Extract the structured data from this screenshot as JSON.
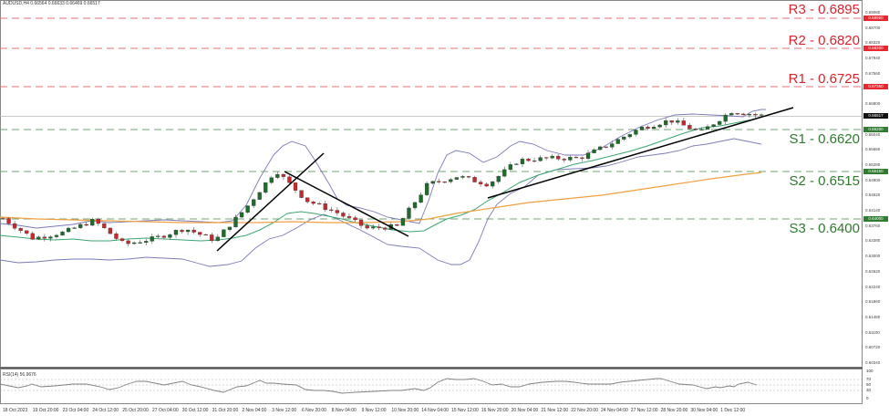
{
  "header": {
    "title": "AUDUSD,H4  0.66564 0.66633 0.66469 0.66517",
    "symbol": "AUDUSD",
    "timeframe": "H4",
    "ohlc": {
      "open": "0.66564",
      "high": "0.66633",
      "low": "0.66469",
      "close": "0.66517"
    }
  },
  "levels": {
    "r3": {
      "label": "R3 - 0.6895",
      "tag": "0.68950",
      "color": "#d9232d"
    },
    "r2": {
      "label": "R2 - 0.6820",
      "tag": "0.68200",
      "color": "#d9232d"
    },
    "r1": {
      "label": "R1 - 0.6725",
      "tag": "0.67250",
      "color": "#d9232d"
    },
    "current": {
      "tag": "0.66517",
      "color": "#111111"
    },
    "s1": {
      "label": "S1 - 0.6620",
      "tag": "0.66200",
      "color": "#2d7a2d"
    },
    "s2": {
      "label": "S2 - 0.6515",
      "tag": "0.65150",
      "color": "#2d7a2d"
    },
    "s3": {
      "label": "S3 - 0.6400",
      "tag": "0.64000",
      "color": "#2d7a2d"
    }
  },
  "price_axis": [
    "0.69080",
    "0.68700",
    "0.68320",
    "0.67940",
    "0.67560",
    "0.66800",
    "0.66040",
    "0.65660",
    "0.65280",
    "0.64900",
    "0.64520",
    "0.64140",
    "0.63760",
    "0.63380",
    "0.63000",
    "0.62620",
    "0.62240",
    "0.61860",
    "0.61480",
    "0.61100",
    "0.60720",
    "0.60340"
  ],
  "time_axis": [
    "18 Oct 2023",
    "19 Oct 20:00",
    "23 Oct 04:00",
    "24 Oct 12:00",
    "25 Oct 20:00",
    "27 Oct 04:00",
    "30 Oct 12:00",
    "31 Oct 20:00",
    "2 Nov 04:00",
    "3 Nov 12:00",
    "6 Nov 20:00",
    "8 Nov 04:00",
    "9 Nov 12:00",
    "10 Nov 20:00",
    "14 Nov 04:00",
    "15 Nov 12:00",
    "16 Nov 20:00",
    "20 Nov 04:00",
    "21 Nov 12:00",
    "22 Nov 20:00",
    "24 Nov 04:00",
    "27 Nov 12:00",
    "28 Nov 20:00",
    "30 Nov 04:00",
    "1 Dec 12:00"
  ],
  "rsi": {
    "title": "RSI(14) 56.9676",
    "axis": [
      "100",
      "70",
      "50",
      "30",
      "0"
    ]
  },
  "chart_data": {
    "type": "candlestick",
    "title": "AUDUSD,H4",
    "xlabel": "",
    "ylabel": "",
    "ylim": [
      0.6034,
      0.6908
    ],
    "indicators": [
      "Bollinger Bands (blue)",
      "Moving average (green)",
      "Moving average (orange)",
      "RSI(14)"
    ],
    "horizontal_levels": [
      {
        "name": "R3",
        "value": 0.6895,
        "style": "dashed",
        "color": "#d9232d"
      },
      {
        "name": "R2",
        "value": 0.682,
        "style": "dashed",
        "color": "#d9232d"
      },
      {
        "name": "R1",
        "value": 0.6725,
        "style": "dashed",
        "color": "#d9232d"
      },
      {
        "name": "S1",
        "value": 0.662,
        "style": "dashed",
        "color": "#2d7a2d"
      },
      {
        "name": "S2",
        "value": 0.6515,
        "style": "dashed",
        "color": "#2d7a2d"
      },
      {
        "name": "S3",
        "value": 0.64,
        "style": "dashed",
        "color": "#2d7a2d"
      }
    ],
    "current_price": 0.66517,
    "trendlines": [
      {
        "from": [
          "31 Oct 20:00",
          0.6375
        ],
        "to": [
          "6 Nov 20:00",
          0.6585
        ],
        "direction": "up"
      },
      {
        "from": [
          "3 Nov 12:00",
          0.6518
        ],
        "to": [
          "14 Nov 04:00",
          0.6383
        ],
        "direction": "down"
      },
      {
        "from": [
          "16 Nov 20:00",
          0.6505
        ],
        "to": [
          "4 Dec",
          0.668
        ],
        "direction": "up"
      }
    ],
    "approx_close_path": [
      [
        "18 Oct 2023",
        0.6395
      ],
      [
        "19 Oct 20:00",
        0.6345
      ],
      [
        "23 Oct 04:00",
        0.636
      ],
      [
        "24 Oct 12:00",
        0.639
      ],
      [
        "25 Oct 20:00",
        0.633
      ],
      [
        "27 Oct 04:00",
        0.6345
      ],
      [
        "30 Oct 12:00",
        0.637
      ],
      [
        "31 Oct 20:00",
        0.634
      ],
      [
        "2 Nov 04:00",
        0.642
      ],
      [
        "3 Nov 12:00",
        0.6515
      ],
      [
        "6 Nov 20:00",
        0.644
      ],
      [
        "8 Nov 04:00",
        0.641
      ],
      [
        "9 Nov 12:00",
        0.637
      ],
      [
        "10 Nov 20:00",
        0.6375
      ],
      [
        "14 Nov 04:00",
        0.648
      ],
      [
        "15 Nov 12:00",
        0.65
      ],
      [
        "16 Nov 20:00",
        0.648
      ],
      [
        "20 Nov 04:00",
        0.654
      ],
      [
        "21 Nov 12:00",
        0.6545
      ],
      [
        "22 Nov 20:00",
        0.6545
      ],
      [
        "24 Nov 04:00",
        0.658
      ],
      [
        "27 Nov 12:00",
        0.662
      ],
      [
        "28 Nov 20:00",
        0.664
      ],
      [
        "30 Nov 04:00",
        0.661
      ],
      [
        "1 Dec 12:00",
        0.6662
      ],
      [
        "4 Dec",
        0.66517
      ]
    ],
    "rsi": {
      "value": 56.9676,
      "levels": [
        70,
        50,
        30
      ],
      "ylim": [
        0,
        100
      ]
    }
  }
}
